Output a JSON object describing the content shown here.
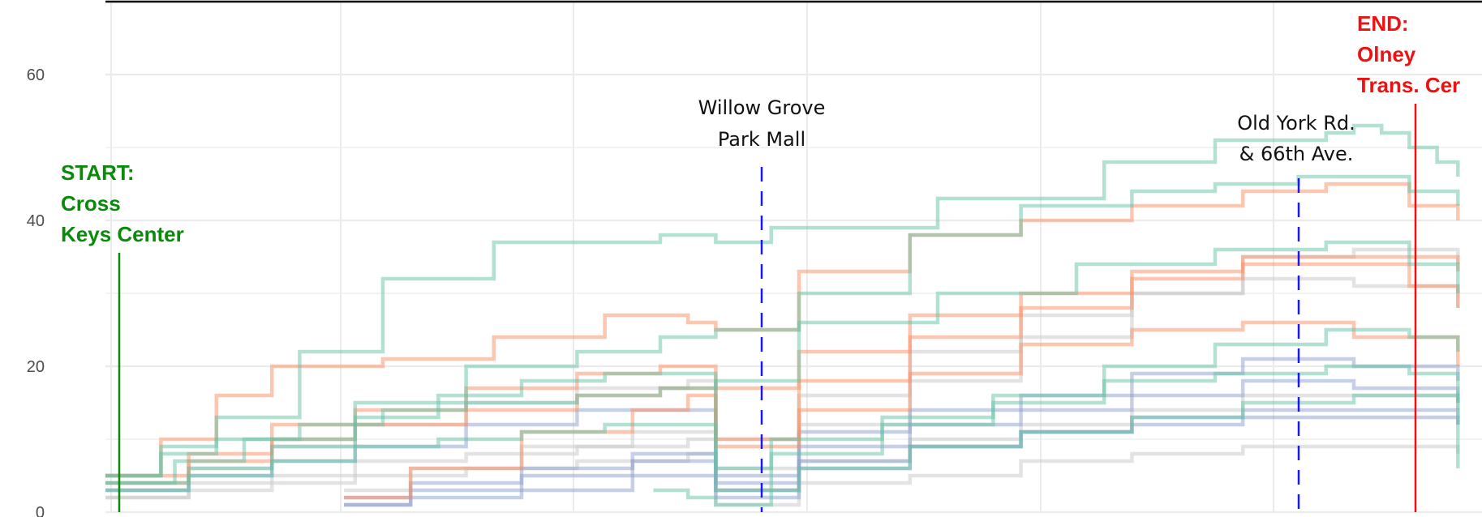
{
  "chart_data": {
    "type": "line",
    "ylim": [
      0,
      70
    ],
    "y_ticks": [
      "0",
      "20",
      "40",
      "60"
    ],
    "y_tick_values": [
      0,
      20,
      40,
      60
    ],
    "x_range": [
      0,
      100
    ],
    "grid": true,
    "colors": {
      "start": "#0a8a0a",
      "end": "#ee1111",
      "stop_line": "#1a1aee",
      "green_series": "#66c2a5",
      "orange_series": "#fc8d62",
      "blue_series": "#8da0cb",
      "grey_series": "#cccccc"
    },
    "annotations": [
      {
        "id": "start",
        "lines": [
          "START:",
          "Cross",
          "Keys Center"
        ],
        "color": "#0a8a0a",
        "x": 0.5,
        "y_top": 35
      },
      {
        "id": "willow-grove",
        "lines": [
          "Willow Grove",
          "Park Mall"
        ],
        "color": "#111111",
        "x": 44.3,
        "y_top": 47
      },
      {
        "id": "old-york",
        "lines": [
          "Old York Rd.",
          "& 66th Ave."
        ],
        "color": "#111111",
        "x": 90.3,
        "y_top": 45
      },
      {
        "id": "end",
        "lines": [
          "END:",
          "Olney",
          "Trans. Cer"
        ],
        "color": "#ee1111",
        "x": 91.5,
        "y_top": 56
      }
    ],
    "series": [
      {
        "group": "green",
        "x": [
          0,
          4,
          8,
          14,
          20,
          28,
          40,
          44,
          48,
          60,
          72,
          80,
          88,
          90,
          92,
          94,
          96,
          97.5
        ],
        "values": [
          5,
          9,
          13,
          22,
          32,
          37,
          38,
          37,
          39,
          43,
          48,
          51,
          52,
          53,
          52,
          50,
          48,
          46
        ]
      },
      {
        "group": "green",
        "x": [
          0,
          4,
          8,
          14,
          20,
          26,
          34,
          40,
          44,
          50,
          58,
          66,
          74,
          80,
          86,
          90,
          94,
          97.5
        ],
        "values": [
          5,
          8,
          10,
          12,
          14,
          15,
          16,
          17,
          18,
          30,
          38,
          42,
          44,
          45,
          46,
          46,
          44,
          42
        ]
      },
      {
        "group": "green",
        "x": [
          0,
          5,
          10,
          18,
          26,
          34,
          40,
          44,
          50,
          60,
          70,
          80,
          88,
          94,
          97.5
        ],
        "values": [
          4,
          7,
          10,
          15,
          20,
          22,
          24,
          25,
          26,
          30,
          34,
          36,
          37,
          34,
          30
        ]
      },
      {
        "group": "green",
        "x": [
          0,
          6,
          12,
          18,
          24,
          30,
          36,
          42,
          44,
          48,
          56,
          64,
          72,
          80,
          88,
          94,
          97.5
        ],
        "values": [
          4,
          6,
          9,
          13,
          16,
          18,
          19,
          19,
          6,
          10,
          13,
          16,
          20,
          23,
          25,
          24,
          22
        ]
      },
      {
        "group": "green",
        "x": [
          0,
          6,
          12,
          18,
          24,
          30,
          36,
          42,
          44,
          50,
          58,
          66,
          74,
          82,
          90,
          97.5
        ],
        "values": [
          3,
          5,
          7,
          9,
          10,
          11,
          12,
          12,
          3,
          6,
          9,
          11,
          13,
          15,
          16,
          15
        ]
      },
      {
        "group": "orange",
        "x": [
          0,
          4,
          8,
          12,
          20,
          28,
          36,
          42,
          44,
          50,
          58,
          66,
          74,
          82,
          88,
          90,
          94,
          97.5
        ],
        "values": [
          5,
          10,
          16,
          20,
          21,
          24,
          27,
          26,
          25,
          33,
          38,
          40,
          42,
          44,
          45,
          45,
          42,
          40
        ]
      },
      {
        "group": "orange",
        "x": [
          0,
          6,
          12,
          18,
          26,
          34,
          40,
          44,
          50,
          58,
          66,
          74,
          82,
          90,
          94,
          97.5
        ],
        "values": [
          5,
          8,
          12,
          14,
          17,
          19,
          20,
          17,
          22,
          27,
          30,
          33,
          34,
          34,
          31,
          28
        ]
      },
      {
        "group": "orange",
        "x": [
          0,
          6,
          12,
          18,
          26,
          34,
          40,
          44,
          50,
          58,
          66,
          74,
          82,
          90,
          97.5
        ],
        "values": [
          4,
          7,
          10,
          12,
          14,
          16,
          17,
          9,
          14,
          19,
          23,
          25,
          26,
          24,
          20
        ]
      },
      {
        "group": "orange",
        "x": [
          17.2,
          22,
          30,
          38,
          42,
          44,
          50,
          58,
          66,
          74,
          82,
          90,
          97.5
        ],
        "values": [
          2,
          6,
          11,
          14,
          16,
          10,
          18,
          24,
          28,
          32,
          35,
          35,
          33
        ]
      },
      {
        "group": "blue",
        "x": [
          17.2,
          22,
          30,
          38,
          44,
          50,
          58,
          66,
          74,
          82,
          90,
          97.5
        ],
        "values": [
          1,
          2,
          3,
          5,
          3,
          7,
          9,
          11,
          12,
          13,
          13,
          12
        ]
      },
      {
        "group": "blue",
        "x": [
          17.2,
          22,
          30,
          38,
          44,
          50,
          58,
          66,
          74,
          82,
          90,
          97.5
        ],
        "values": [
          1,
          3,
          5,
          7,
          4,
          9,
          12,
          14,
          16,
          18,
          17,
          15
        ]
      },
      {
        "group": "blue",
        "x": [
          17.2,
          22,
          30,
          38,
          44,
          50,
          58,
          66,
          74,
          82,
          90,
          97.5
        ],
        "values": [
          2,
          4,
          6,
          8,
          5,
          11,
          14,
          16,
          19,
          21,
          20,
          18
        ]
      },
      {
        "group": "blue",
        "x": [
          0,
          6,
          12,
          18,
          26,
          34,
          42,
          44,
          50,
          58,
          66,
          74,
          82,
          90,
          97.5
        ],
        "values": [
          3,
          5,
          7,
          9,
          12,
          14,
          14,
          2,
          6,
          9,
          11,
          13,
          14,
          14,
          12
        ]
      },
      {
        "group": "grey",
        "x": [
          0,
          6,
          12,
          18,
          26,
          34,
          42,
          44,
          50,
          58,
          66,
          74,
          82,
          90,
          97.5
        ],
        "values": [
          2,
          3,
          4,
          5,
          6,
          7,
          8,
          1,
          4,
          5,
          7,
          8,
          9,
          9,
          8
        ]
      },
      {
        "group": "grey",
        "x": [
          0,
          6,
          12,
          18,
          26,
          34,
          42,
          44,
          50,
          58,
          66,
          74,
          82,
          90,
          97.5
        ],
        "values": [
          3,
          6,
          9,
          12,
          15,
          17,
          18,
          10,
          16,
          22,
          27,
          30,
          32,
          31,
          28
        ]
      },
      {
        "group": "grey",
        "x": [
          17.2,
          22,
          30,
          38,
          44,
          50,
          58,
          66,
          74,
          82,
          90,
          97.5
        ],
        "values": [
          3,
          6,
          9,
          11,
          6,
          12,
          18,
          24,
          30,
          35,
          36,
          34
        ]
      },
      {
        "group": "grey",
        "x": [
          0,
          6,
          12,
          18,
          26,
          34,
          42,
          44,
          50,
          58,
          66,
          74,
          82,
          90,
          97.5
        ],
        "values": [
          2,
          4,
          5,
          7,
          8,
          9,
          10,
          3,
          7,
          10,
          12,
          14,
          16,
          16,
          14
        ]
      },
      {
        "group": "green",
        "x": [
          39.5,
          42,
          44,
          48,
          56,
          64,
          72,
          80,
          88,
          94,
          97.5
        ],
        "values": [
          3,
          2,
          1,
          8,
          12,
          15,
          18,
          19,
          20,
          19,
          6
        ]
      }
    ]
  }
}
